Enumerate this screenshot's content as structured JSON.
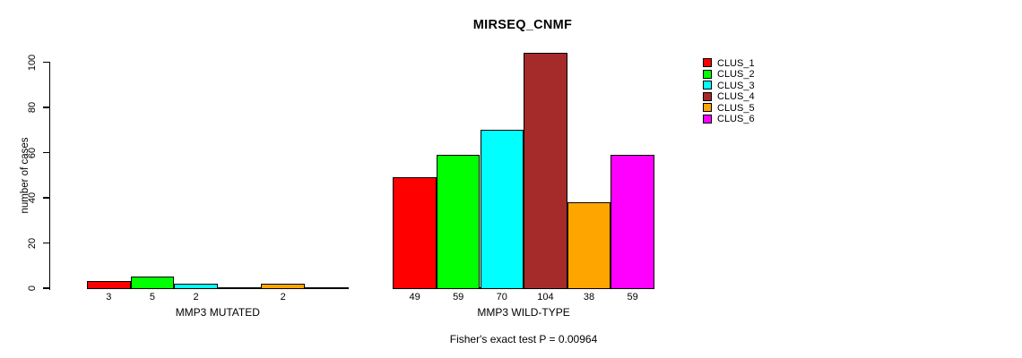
{
  "window": {
    "background": "#ffffff",
    "text_color": "#000000"
  },
  "chart_data": {
    "type": "bar",
    "title": "MIRSEQ_CNMF",
    "ylabel": "number of cases",
    "xlabel": "",
    "ylim": [
      0,
      100
    ],
    "yticks": [
      0,
      20,
      40,
      60,
      80,
      100
    ],
    "grid": false,
    "legend_position": "top-right",
    "series": [
      {
        "name": "CLUS_1",
        "color": "#FF0000",
        "values": [
          3,
          49
        ]
      },
      {
        "name": "CLUS_2",
        "color": "#00FF00",
        "values": [
          5,
          59
        ]
      },
      {
        "name": "CLUS_3",
        "color": "#00FFFF",
        "values": [
          2,
          70
        ]
      },
      {
        "name": "CLUS_4",
        "color": "#A52A2A",
        "values": [
          null,
          104
        ]
      },
      {
        "name": "CLUS_5",
        "color": "#FFA500",
        "values": [
          2,
          38
        ]
      },
      {
        "name": "CLUS_6",
        "color": "#FF00FF",
        "values": [
          null,
          59
        ]
      }
    ],
    "categories": [
      "MMP3 MUTATED",
      "MMP3 WILD-TYPE"
    ],
    "bar_value_labels": {
      "MMP3 MUTATED": [
        "3",
        "5",
        "2",
        null,
        "2",
        null
      ],
      "MMP3 WILD-TYPE": [
        "49",
        "59",
        "70",
        "104",
        "38",
        "59"
      ]
    },
    "annotation": "Fisher's exact test P = 0.00964"
  }
}
